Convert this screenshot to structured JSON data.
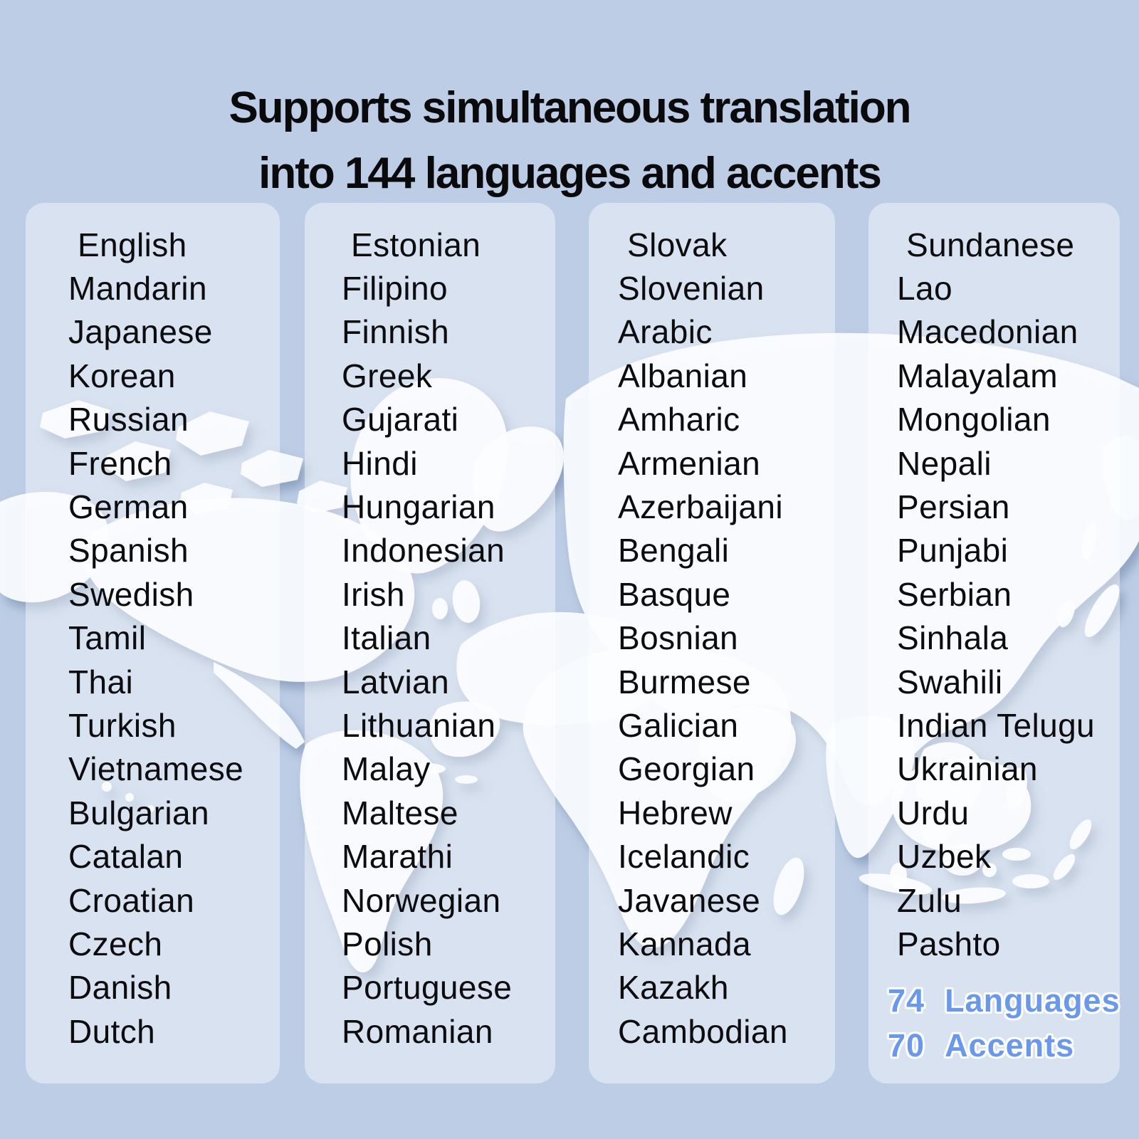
{
  "title": {
    "line1": "Supports simultaneous translation",
    "line2": "into 144 languages and accents"
  },
  "columns": [
    {
      "items": [
        "English",
        "Mandarin",
        "Japanese",
        "Korean",
        "Russian",
        "French",
        "German",
        "Spanish",
        "Swedish",
        "Tamil",
        "Thai",
        "Turkish",
        "Vietnamese",
        "Bulgarian",
        "Catalan",
        "Croatian",
        "Czech",
        "Danish",
        "Dutch"
      ]
    },
    {
      "items": [
        "Estonian",
        "Filipino",
        "Finnish",
        "Greek",
        "Gujarati",
        "Hindi",
        "Hungarian",
        "Indonesian",
        "Irish",
        "Italian",
        "Latvian",
        "Lithuanian",
        "Malay",
        "Maltese",
        "Marathi",
        "Norwegian",
        "Polish",
        "Portuguese",
        "Romanian"
      ]
    },
    {
      "items": [
        "Slovak",
        "Slovenian",
        "Arabic",
        "Albanian",
        "Amharic",
        "Armenian",
        "Azerbaijani",
        "Bengali",
        "Basque",
        "Bosnian",
        "Burmese",
        "Galician",
        "Georgian",
        "Hebrew",
        "Icelandic",
        "Javanese",
        "Kannada",
        "Kazakh",
        "Cambodian"
      ]
    },
    {
      "items": [
        "Sundanese",
        "Lao",
        "Macedonian",
        "Malayalam",
        "Mongolian",
        "Nepali",
        "Persian",
        "Punjabi",
        "Serbian",
        "Sinhala",
        "Swahili",
        "Indian Telugu",
        "Ukrainian",
        "Urdu",
        "Uzbek",
        "Zulu",
        "Pashto"
      ]
    }
  ],
  "stats": [
    {
      "value": "74",
      "label": "Languages"
    },
    {
      "value": "70",
      "label": "Accents"
    }
  ],
  "icons": {
    "background_graphic": "world-map-silhouette"
  },
  "colors": {
    "background": "#bccde5",
    "panel_overlay": "#dce4f1",
    "accent_blue": "#6a98ea",
    "text": "#0c0c0e",
    "map": "#f8fbfe"
  }
}
